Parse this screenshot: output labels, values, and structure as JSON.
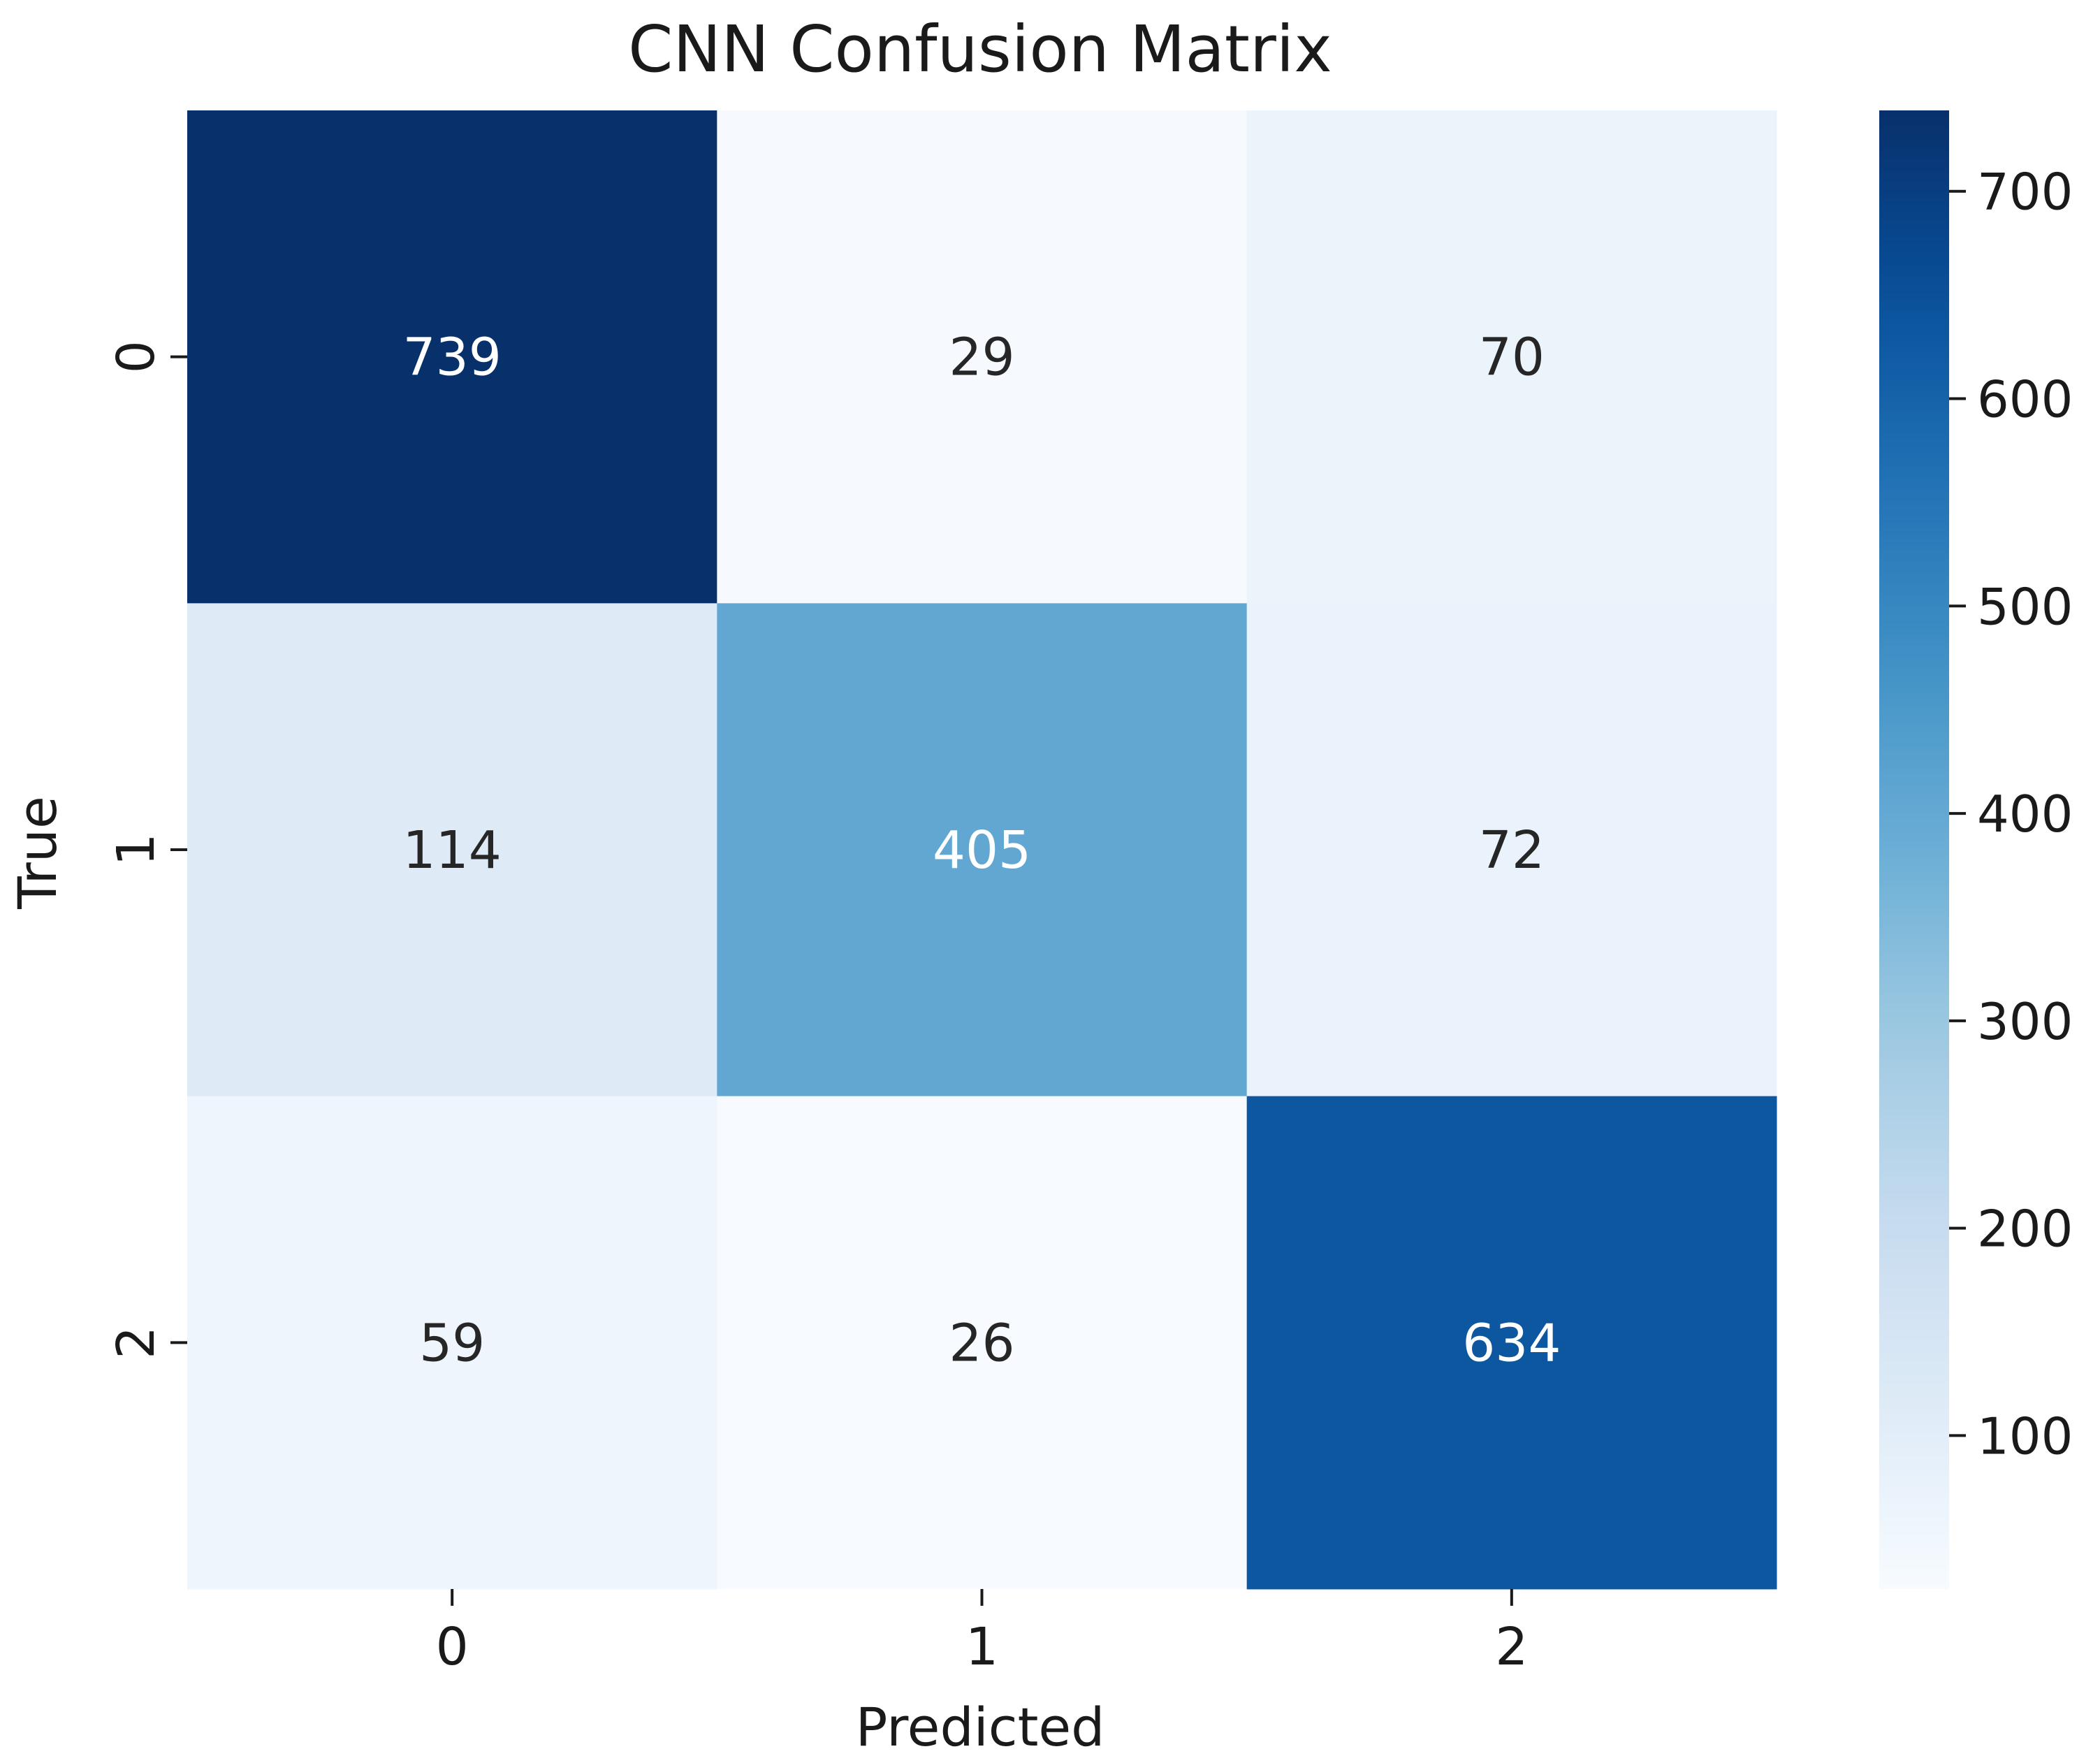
{
  "chart_data": {
    "type": "heatmap",
    "title": "CNN Confusion Matrix",
    "xlabel": "Predicted",
    "ylabel": "True",
    "x_categories": [
      "0",
      "1",
      "2"
    ],
    "y_categories": [
      "0",
      "1",
      "2"
    ],
    "values": [
      [
        739,
        29,
        70
      ],
      [
        114,
        405,
        72
      ],
      [
        59,
        26,
        634
      ]
    ],
    "colormap": "Blues",
    "vmin": 26,
    "vmax": 739,
    "colorbar_ticks": [
      100,
      200,
      300,
      400,
      500,
      600,
      700
    ],
    "annotation_colors": {
      "light_background": "#262626",
      "dark_background": "#ffffff"
    }
  }
}
